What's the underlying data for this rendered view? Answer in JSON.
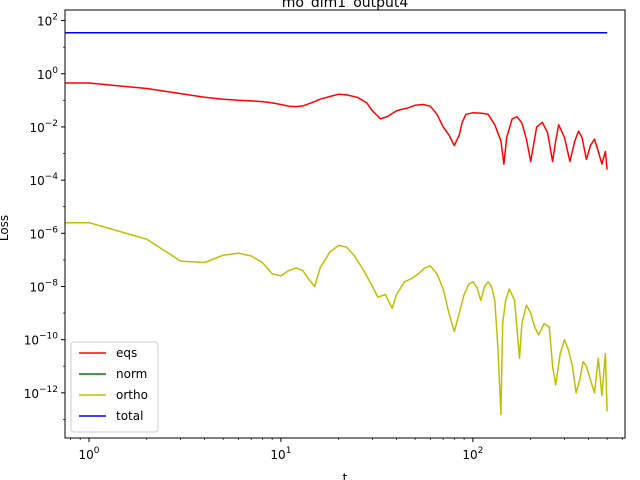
{
  "chart_data": {
    "type": "line",
    "title": "mo_dim1_output4",
    "xlabel": "t",
    "ylabel": "Loss",
    "xscale": "log",
    "yscale": "log",
    "xlim": [
      0.75,
      620
    ],
    "ylim": [
      2e-14,
      250
    ],
    "xticks": [
      {
        "value": 1,
        "base": "10",
        "exp": "0"
      },
      {
        "value": 10,
        "base": "10",
        "exp": "1"
      },
      {
        "value": 100,
        "base": "10",
        "exp": "2"
      }
    ],
    "yticks": [
      {
        "value": 100.0,
        "base": "10",
        "exp": "2"
      },
      {
        "value": 1.0,
        "base": "10",
        "exp": "0"
      },
      {
        "value": 0.01,
        "base": "10",
        "exp": "−2"
      },
      {
        "value": 0.0001,
        "base": "10",
        "exp": "−4"
      },
      {
        "value": 1e-06,
        "base": "10",
        "exp": "−6"
      },
      {
        "value": 1e-08,
        "base": "10",
        "exp": "−8"
      },
      {
        "value": 1e-10,
        "base": "10",
        "exp": "−10"
      },
      {
        "value": 1e-12,
        "base": "10",
        "exp": "−12"
      }
    ],
    "grid": false,
    "legend_position": "lower-left",
    "series": [
      {
        "name": "eqs",
        "color": "#ff0000",
        "x": [
          0.75,
          1,
          2,
          3,
          4,
          5,
          6,
          7,
          8,
          9,
          10,
          11,
          12,
          13,
          14,
          15,
          16,
          18,
          20,
          22,
          25,
          28,
          30,
          33,
          36,
          38,
          40,
          42,
          45,
          50,
          55,
          60,
          65,
          70,
          75,
          80,
          85,
          88,
          92,
          100,
          110,
          120,
          130,
          140,
          145,
          150,
          160,
          170,
          180,
          190,
          200,
          215,
          230,
          245,
          260,
          270,
          280,
          300,
          320,
          340,
          355,
          370,
          390,
          410,
          430,
          450,
          470,
          490,
          500
        ],
        "y": [
          0.45,
          0.45,
          0.28,
          0.18,
          0.13,
          0.11,
          0.1,
          0.095,
          0.09,
          0.08,
          0.07,
          0.06,
          0.058,
          0.062,
          0.075,
          0.09,
          0.11,
          0.14,
          0.17,
          0.16,
          0.13,
          0.08,
          0.04,
          0.02,
          0.025,
          0.032,
          0.04,
          0.045,
          0.05,
          0.065,
          0.07,
          0.06,
          0.03,
          0.01,
          0.005,
          0.002,
          0.005,
          0.015,
          0.03,
          0.034,
          0.033,
          0.03,
          0.012,
          0.003,
          0.0004,
          0.004,
          0.02,
          0.024,
          0.014,
          0.0035,
          0.0005,
          0.01,
          0.015,
          0.006,
          0.0005,
          0.003,
          0.012,
          0.004,
          0.0005,
          0.003,
          0.007,
          0.004,
          0.0006,
          0.002,
          0.0035,
          0.0012,
          0.0004,
          0.0012,
          0.00025
        ]
      },
      {
        "name": "norm",
        "color": "#008000",
        "x": [
          0.75,
          500
        ],
        "y": [
          35,
          35
        ]
      },
      {
        "name": "ortho",
        "color": "#bfbf00",
        "x": [
          0.75,
          1,
          2,
          3,
          4,
          5,
          6,
          7,
          8,
          9,
          10,
          11,
          12,
          13,
          14,
          15,
          16,
          18,
          20,
          22,
          24,
          27,
          30,
          32,
          35,
          38,
          40,
          44,
          48,
          52,
          56,
          60,
          65,
          70,
          75,
          80,
          85,
          90,
          95,
          100,
          105,
          110,
          115,
          120,
          125,
          130,
          135,
          140,
          143,
          148,
          155,
          165,
          175,
          180,
          190,
          200,
          210,
          220,
          235,
          250,
          260,
          270,
          285,
          300,
          315,
          330,
          345,
          360,
          375,
          390,
          410,
          430,
          450,
          470,
          490,
          500
        ],
        "y": [
          2.5e-06,
          2.5e-06,
          6e-07,
          9e-08,
          8e-08,
          1.5e-07,
          1.8e-07,
          1.4e-07,
          8e-08,
          3e-08,
          2.5e-08,
          4e-08,
          5e-08,
          4e-08,
          1.8e-08,
          1e-08,
          5e-08,
          2e-07,
          3.5e-07,
          3e-07,
          1.5e-07,
          4e-08,
          1e-08,
          4e-09,
          5e-09,
          1.5e-09,
          5e-09,
          1.5e-08,
          2e-08,
          3e-08,
          5e-08,
          6e-08,
          3e-08,
          8e-09,
          1e-09,
          2e-10,
          1e-09,
          5e-09,
          1.2e-08,
          1.5e-08,
          9e-09,
          3e-09,
          1e-08,
          1.5e-08,
          1e-08,
          3e-09,
          5e-11,
          1.5e-13,
          4e-10,
          3e-09,
          8e-09,
          3e-09,
          2e-11,
          4e-10,
          2e-09,
          1e-09,
          3e-10,
          1.5e-10,
          4e-10,
          3e-10,
          1e-11,
          2e-12,
          3e-11,
          1e-10,
          4e-11,
          1e-11,
          1e-12,
          3e-12,
          1.5e-11,
          1e-11,
          3e-12,
          1e-12,
          2e-11,
          8e-13,
          3e-11,
          2e-13
        ]
      },
      {
        "name": "total",
        "color": "#0000ff",
        "x": [
          0.75,
          500
        ],
        "y": [
          35,
          35
        ]
      }
    ]
  }
}
